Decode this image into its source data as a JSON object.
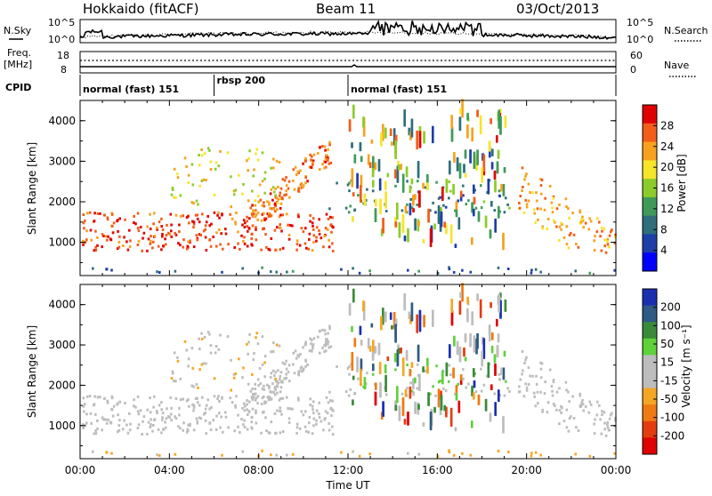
{
  "header": {
    "station": "Hokkaido (fitACF)",
    "beam": "Beam 11",
    "date": "03/Oct/2013"
  },
  "top_panels": {
    "nsky_label": "N.Sky",
    "nsearch_label": "N.Search",
    "nsky_ticks": [
      "10^5",
      "10^0"
    ],
    "nsearch_ticks": [
      "10^5",
      "10^0"
    ],
    "freq_label_1": "Freq.",
    "freq_label_2": "[MHz]",
    "freq_ticks": [
      "18",
      "8"
    ],
    "nave_label": "Nave",
    "nave_ticks": [
      "60",
      "0"
    ],
    "cpid_label": "CPID",
    "cpid_segments": [
      {
        "name": "normal (fast) 151",
        "start_hour": 0,
        "end_hour": 6
      },
      {
        "name": "rbsp 200",
        "start_hour": 6,
        "end_hour": 12
      },
      {
        "name": "normal (fast) 151",
        "start_hour": 12,
        "end_hour": 24
      }
    ]
  },
  "chart_data": [
    {
      "type": "heatmap",
      "title": "",
      "xlabel": "",
      "ylabel": "Slant Range [km]",
      "xlim": [
        0,
        24
      ],
      "ylim": [
        180,
        4500
      ],
      "yticks": [
        1000,
        2000,
        3000,
        4000
      ],
      "colorbar_label": "Power [dB]",
      "colorbar_ticks": [
        4,
        8,
        12,
        16,
        20,
        24,
        28
      ],
      "colorbar_range": [
        0,
        30
      ],
      "regions": [
        {
          "description": "near-range ionospheric scatter",
          "x": [
            0,
            11.3
          ],
          "y": [
            750,
            1700
          ],
          "value": 26
        },
        {
          "description": "rising scatter band",
          "x": [
            7.5,
            11.2
          ],
          "y": [
            1700,
            3500
          ],
          "value": 24
        },
        {
          "description": "mid-range scatter",
          "x": [
            4,
            9
          ],
          "y": [
            1800,
            3300
          ],
          "value": 18
        },
        {
          "description": "evening scatter",
          "x": [
            11,
            19.5
          ],
          "y": [
            1700,
            2500
          ],
          "value": 10
        },
        {
          "description": "post-sunset descending band",
          "x": [
            19.5,
            24
          ],
          "y": [
            700,
            3000
          ],
          "value": 22
        },
        {
          "description": "ground scatter near range",
          "x": [
            0,
            24
          ],
          "y": [
            200,
            350
          ],
          "value": 8
        }
      ]
    },
    {
      "type": "heatmap",
      "title": "",
      "xlabel": "Time UT",
      "ylabel": "Slant Range [km]",
      "xlim": [
        0,
        24
      ],
      "ylim": [
        180,
        4500
      ],
      "yticks": [
        1000,
        2000,
        3000,
        4000
      ],
      "xticks": [
        "00:00",
        "04:00",
        "08:00",
        "12:00",
        "16:00",
        "20:00",
        "00:00"
      ],
      "colorbar_label": "Velocity [m s⁻¹]",
      "colorbar_ticks": [
        200,
        100,
        50,
        15,
        -15,
        -50,
        -100,
        -200
      ],
      "colorbar_range": [
        -250,
        250
      ],
      "regions": [
        {
          "description": "near-range ground scatter",
          "x": [
            0,
            11.3
          ],
          "y": [
            750,
            1700
          ],
          "value": 0
        },
        {
          "description": "rising band",
          "x": [
            7.5,
            11.2
          ],
          "y": [
            1700,
            3500
          ],
          "value": 0
        },
        {
          "description": "mid-range scatter",
          "x": [
            4,
            9
          ],
          "y": [
            1800,
            3300
          ],
          "value": -40
        },
        {
          "description": "evening scatter",
          "x": [
            11,
            19.5
          ],
          "y": [
            1700,
            2500
          ],
          "value": 35
        },
        {
          "description": "post-sunset descending band",
          "x": [
            19.5,
            24
          ],
          "y": [
            700,
            3000
          ],
          "value": 0
        },
        {
          "description": "ground scatter near range",
          "x": [
            0,
            24
          ],
          "y": [
            200,
            350
          ],
          "value": -60
        }
      ]
    }
  ],
  "colors": {
    "power_scale": [
      "#0000ff",
      "#1e3fa8",
      "#2f6e7a",
      "#3f9a5a",
      "#8ccc2a",
      "#f6e52a",
      "#f7a21f",
      "#f25d1a",
      "#e10000"
    ],
    "velocity_scale": [
      "#1a2fb0",
      "#2e5a84",
      "#3a8a3a",
      "#5fd13a",
      "#bdbdbd",
      "#bdbdbd",
      "#f5a623",
      "#f07a12",
      "#e43c10",
      "#e00000"
    ]
  }
}
